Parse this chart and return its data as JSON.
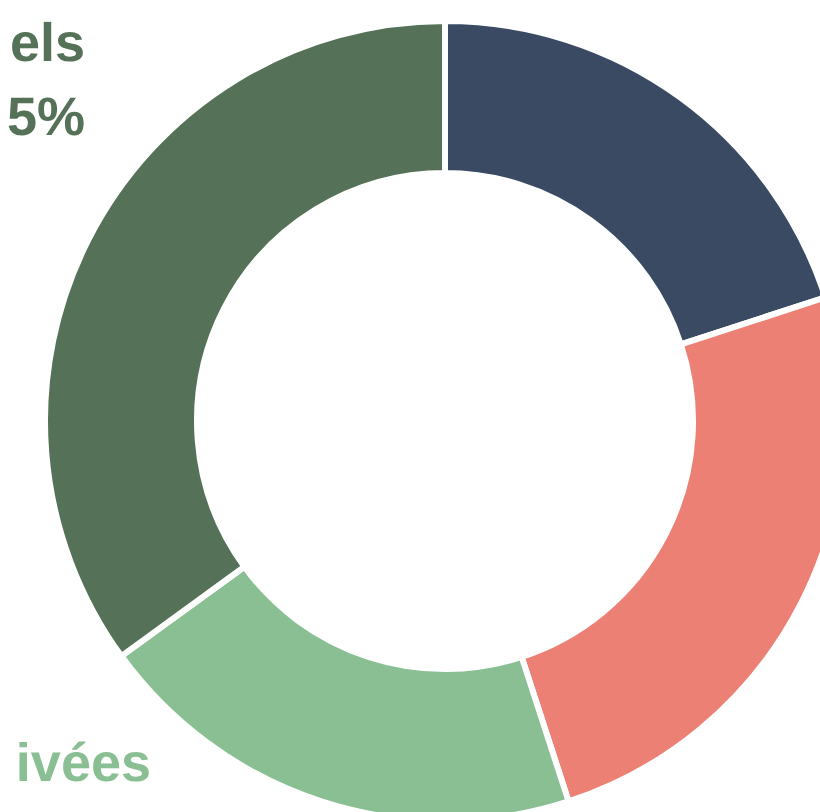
{
  "chart_data": {
    "type": "donut",
    "categories": [
      null,
      null,
      null,
      null
    ],
    "values": [
      20,
      25,
      20,
      35
    ],
    "colors": [
      "#3a4a63",
      "#ec8075",
      "#8abf94",
      "#557157"
    ],
    "annotations": [
      "els\n5%",
      "ivées"
    ]
  }
}
